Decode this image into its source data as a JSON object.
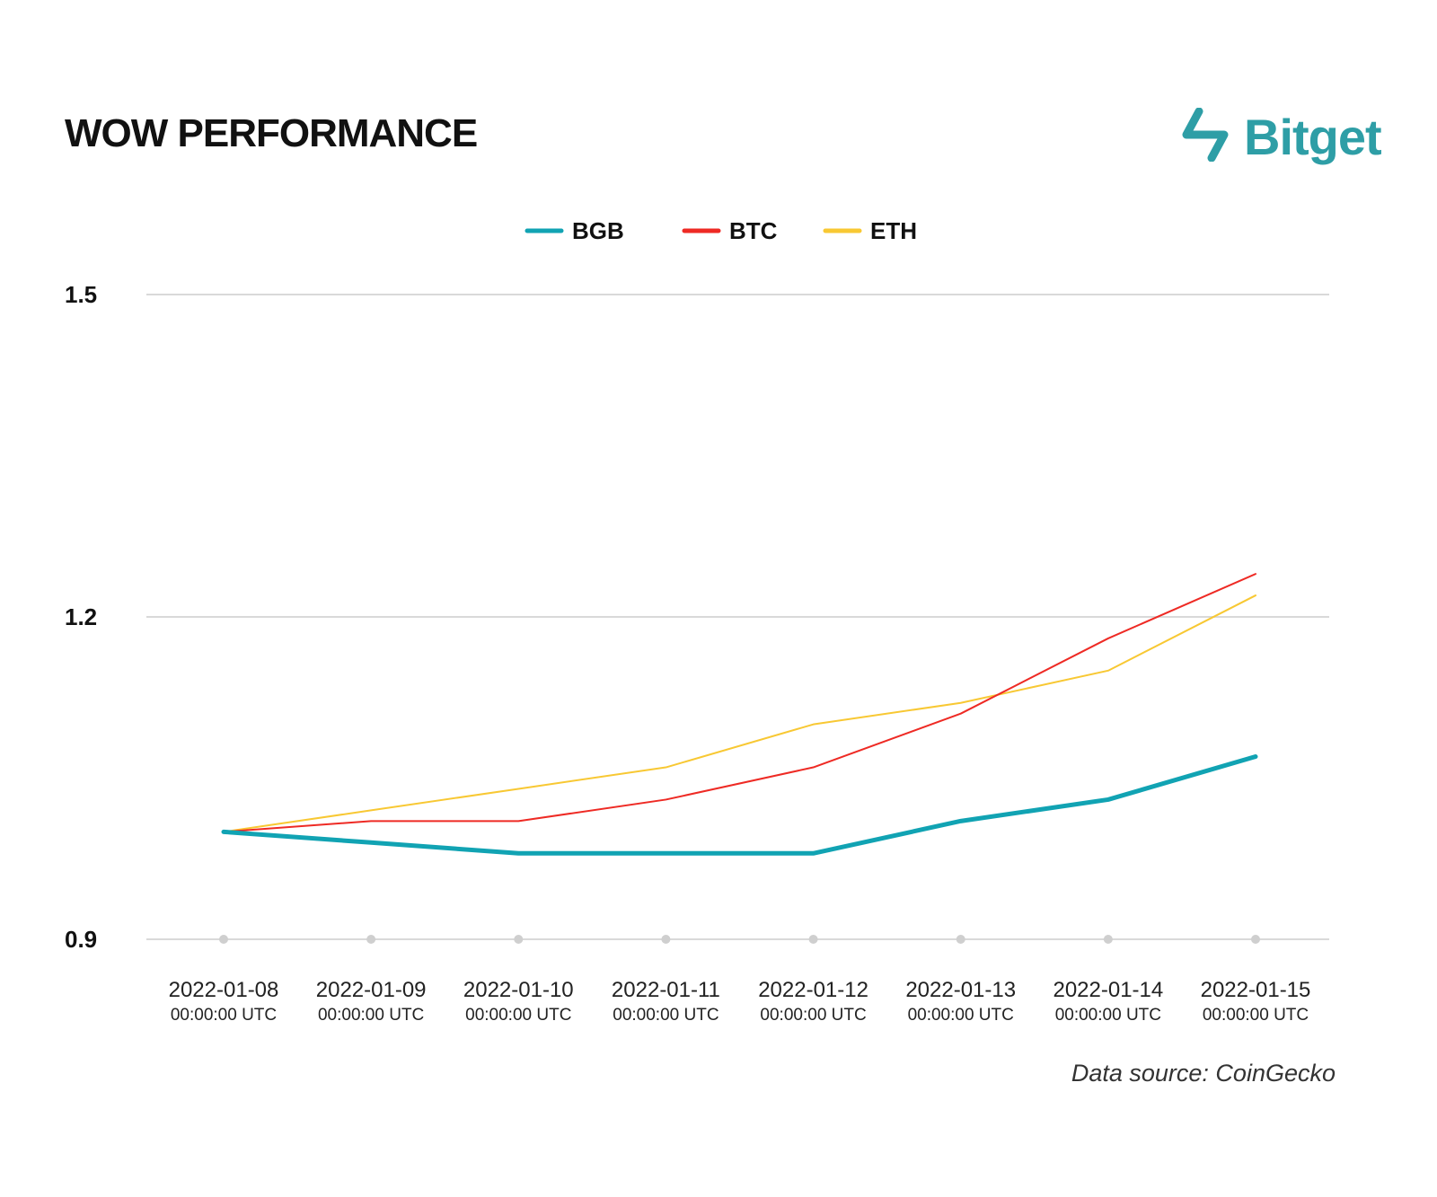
{
  "header": {
    "title": "WOW PERFORMANCE",
    "brand": "Bitget",
    "brand_icon": "bitget-arrows-icon"
  },
  "footer": {
    "source": "Data source: CoinGecko"
  },
  "colors": {
    "BGB": "#11a3b3",
    "BTC": "#ee2a24",
    "ETH": "#f8c833",
    "grid": "#d9d9d9",
    "brand": "#2e9ea6"
  },
  "chart_data": {
    "type": "line",
    "title": "WOW PERFORMANCE",
    "x": [
      "2022-01-08",
      "2022-01-09",
      "2022-01-10",
      "2022-01-11",
      "2022-01-12",
      "2022-01-13",
      "2022-01-14",
      "2022-01-15"
    ],
    "x_tick_labels": [
      [
        "2022-01-08",
        "00:00:00 UTC"
      ],
      [
        "2022-01-09",
        "00:00:00 UTC"
      ],
      [
        "2022-01-10",
        "00:00:00 UTC"
      ],
      [
        "2022-01-11",
        "00:00:00 UTC"
      ],
      [
        "2022-01-12",
        "00:00:00 UTC"
      ],
      [
        "2022-01-13",
        "00:00:00 UTC"
      ],
      [
        "2022-01-14",
        "00:00:00 UTC"
      ],
      [
        "2022-01-15",
        "00:00:00 UTC"
      ]
    ],
    "y_ticks": [
      "0.9",
      "1.2",
      "1.5"
    ],
    "ylim": [
      0.9,
      1.5
    ],
    "grid": true,
    "legend_position": "top-center",
    "series": [
      {
        "name": "BGB",
        "values": [
          1.0,
          0.99,
          0.98,
          0.98,
          0.98,
          1.01,
          1.03,
          1.07
        ]
      },
      {
        "name": "BTC",
        "values": [
          1.0,
          1.01,
          1.01,
          1.03,
          1.06,
          1.11,
          1.18,
          1.24
        ]
      },
      {
        "name": "ETH",
        "values": [
          1.0,
          1.02,
          1.04,
          1.06,
          1.1,
          1.12,
          1.15,
          1.22
        ]
      }
    ]
  }
}
